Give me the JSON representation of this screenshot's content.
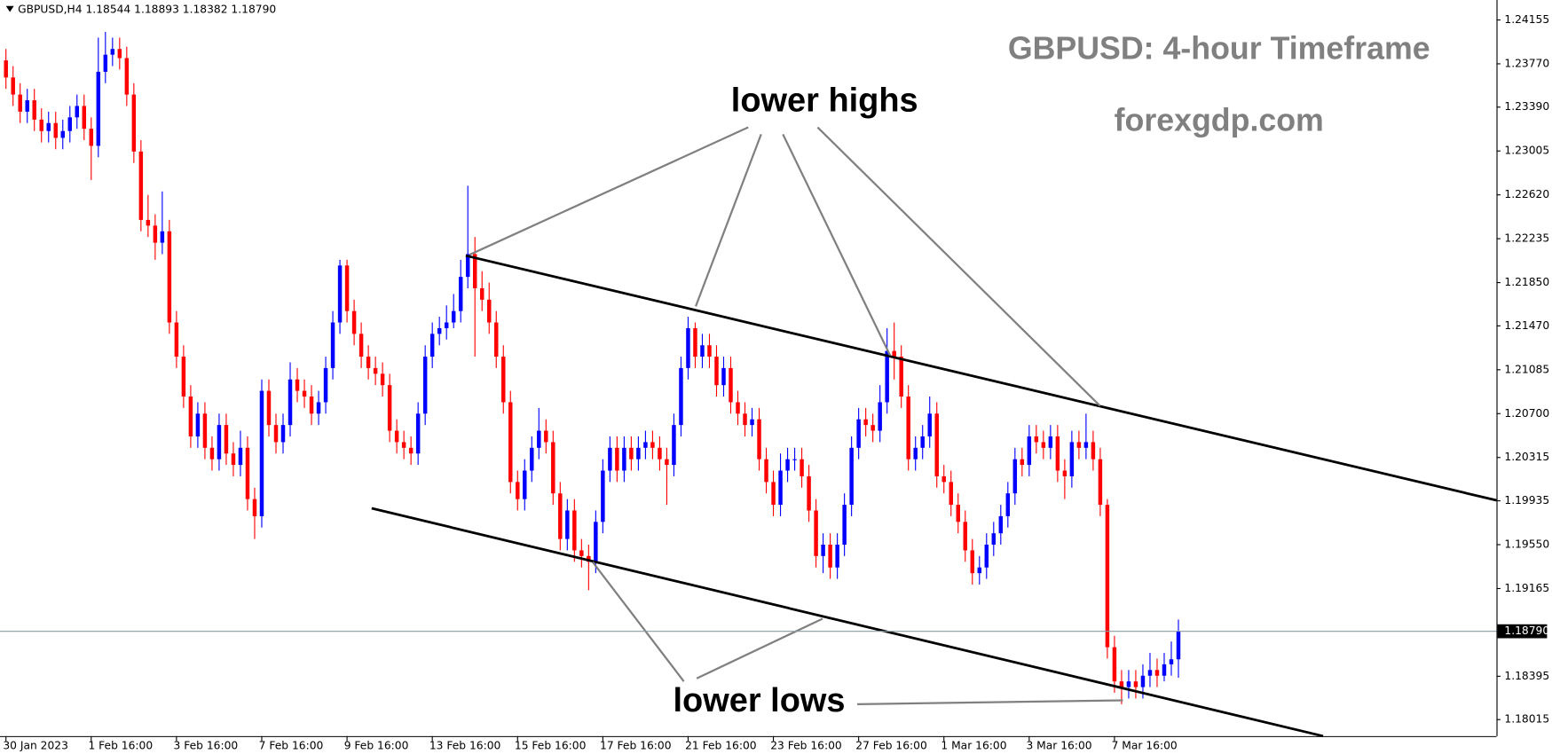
{
  "chart_data": {
    "type": "candlestick",
    "header": "GBPUSD,H4  1.18544 1.18893 1.18382 1.18790",
    "title": "GBPUSD: 4-hour Timeframe",
    "subtitle": "forexgdp.com",
    "annotations": [
      "lower highs",
      "lower lows"
    ],
    "up_color": "#0000ff",
    "down_color": "#ff0000",
    "ylim": [
      1.1787,
      1.2433
    ],
    "yticks": [
      1.24155,
      {
        "value": 1.2377,
        "label": "1.23770"
      },
      {
        "value": 1.2339,
        "label": "1.23390"
      },
      1.23005,
      {
        "value": 1.2262,
        "label": "1.22620"
      },
      1.22235,
      {
        "value": 1.2185,
        "label": "1.21850"
      },
      {
        "value": 1.2147,
        "label": "1.21470"
      },
      1.21085,
      {
        "value": 1.207,
        "label": "1.20700"
      },
      1.20315,
      1.19935,
      {
        "value": 1.1955,
        "label": "1.19550"
      },
      1.19165,
      1.18395,
      1.18015
    ],
    "price_line": {
      "value": 1.1879,
      "label": "1.18790"
    },
    "categories": [
      "30 Jan 2023",
      null,
      null,
      null,
      null,
      null,
      null,
      null,
      null,
      null,
      null,
      null,
      "1 Feb 16:00",
      null,
      null,
      null,
      null,
      null,
      null,
      null,
      null,
      null,
      null,
      null,
      "3 Feb 16:00",
      null,
      null,
      null,
      null,
      null,
      null,
      null,
      null,
      null,
      null,
      null,
      "7 Feb 16:00",
      null,
      null,
      null,
      null,
      null,
      null,
      null,
      null,
      null,
      null,
      null,
      "9 Feb 16:00",
      null,
      null,
      null,
      null,
      null,
      null,
      null,
      null,
      null,
      null,
      null,
      "13 Feb 16:00",
      null,
      null,
      null,
      null,
      null,
      null,
      null,
      null,
      null,
      null,
      null,
      "15 Feb 16:00",
      null,
      null,
      null,
      null,
      null,
      null,
      null,
      null,
      null,
      null,
      null,
      "17 Feb 16:00",
      null,
      null,
      null,
      null,
      null,
      null,
      null,
      null,
      null,
      null,
      null,
      "21 Feb 16:00",
      null,
      null,
      null,
      null,
      null,
      null,
      null,
      null,
      null,
      null,
      null,
      "23 Feb 16:00",
      null,
      null,
      null,
      null,
      null,
      null,
      null,
      null,
      null,
      null,
      null,
      "27 Feb 16:00",
      null,
      null,
      null,
      null,
      null,
      null,
      null,
      null,
      null,
      null,
      null,
      "1 Mar 16:00",
      null,
      null,
      null,
      null,
      null,
      null,
      null,
      null,
      null,
      null,
      null,
      "3 Mar 16:00",
      null,
      null,
      null,
      null,
      null,
      null,
      null,
      null,
      null,
      null,
      null,
      "7 Mar 16:00",
      null,
      null,
      null,
      null,
      null,
      null,
      null,
      null,
      null
    ],
    "open": [
      1.238,
      1.2365,
      1.235,
      1.2335,
      1.2345,
      1.2328,
      1.2318,
      1.2325,
      1.2312,
      1.2318,
      1.233,
      1.234,
      1.232,
      1.2305,
      1.237,
      1.2385,
      1.239,
      1.2382,
      1.235,
      1.23,
      1.224,
      1.2235,
      1.222,
      1.223,
      1.215,
      1.212,
      1.2085,
      1.205,
      1.207,
      1.204,
      1.203,
      1.206,
      1.2035,
      1.2025,
      1.204,
      1.1995,
      1.198,
      1.209,
      1.206,
      1.2045,
      1.206,
      1.21,
      1.209,
      1.2085,
      1.207,
      1.208,
      1.211,
      1.215,
      1.22,
      1.216,
      1.214,
      1.212,
      1.211,
      1.2105,
      1.2095,
      1.2055,
      1.2045,
      1.204,
      1.2035,
      1.207,
      1.212,
      1.214,
      1.2145,
      1.215,
      1.216,
      1.219,
      1.221,
      1.218,
      1.217,
      1.215,
      1.212,
      1.208,
      1.201,
      1.1995,
      1.202,
      1.204,
      1.2055,
      1.2045,
      1.2,
      1.196,
      1.1985,
      1.195,
      1.1945,
      1.194,
      1.1975,
      1.202,
      1.204,
      1.202,
      1.204,
      1.203,
      1.204,
      1.2045,
      1.204,
      1.203,
      1.2025,
      1.206,
      1.211,
      1.2145,
      1.212,
      1.213,
      1.212,
      1.2095,
      1.211,
      1.208,
      1.207,
      1.206,
      1.2065,
      1.203,
      1.201,
      1.199,
      1.202,
      1.203,
      1.203,
      1.2015,
      1.1985,
      1.1945,
      1.1955,
      1.1935,
      1.1955,
      1.199,
      1.204,
      1.2065,
      1.206,
      1.2055,
      1.208,
      1.2125,
      1.212,
      1.2085,
      1.203,
      1.204,
      1.205,
      1.207,
      1.2015,
      1.201,
      1.199,
      1.1975,
      1.195,
      1.193,
      1.1935,
      1.1955,
      1.1965,
      1.198,
      1.2,
      1.203,
      1.2025,
      1.205,
      1.2045,
      1.204,
      1.205,
      1.202,
      1.2015,
      1.2045,
      1.204,
      1.2045,
      1.203,
      1.199,
      1.1865,
      1.1835,
      1.183,
      1.1835,
      1.183,
      1.184,
      1.1845,
      1.184,
      1.185,
      1.18544
    ],
    "high": [
      1.239,
      1.2375,
      1.236,
      1.2355,
      1.2355,
      1.2338,
      1.2335,
      1.2335,
      1.2328,
      1.234,
      1.235,
      1.235,
      1.233,
      1.24,
      1.2405,
      1.24,
      1.24,
      1.2392,
      1.236,
      1.231,
      1.2262,
      1.2245,
      1.2265,
      1.224,
      1.216,
      1.213,
      1.2095,
      1.208,
      1.208,
      1.205,
      1.207,
      1.207,
      1.2045,
      1.2055,
      1.205,
      1.2005,
      1.21,
      1.21,
      1.207,
      1.207,
      1.2115,
      1.211,
      1.21,
      1.2095,
      1.209,
      1.212,
      1.216,
      1.2205,
      1.2205,
      1.217,
      1.215,
      1.213,
      1.212,
      1.2115,
      1.2105,
      1.2065,
      1.2055,
      1.205,
      1.208,
      1.213,
      1.215,
      1.2155,
      1.2165,
      1.2175,
      1.2205,
      1.227,
      1.2225,
      1.2195,
      1.2185,
      1.216,
      1.213,
      1.209,
      1.202,
      1.203,
      1.205,
      1.2075,
      1.2065,
      1.2055,
      1.201,
      1.1995,
      1.1995,
      1.196,
      1.1955,
      1.1985,
      1.203,
      1.205,
      1.205,
      1.205,
      1.205,
      1.205,
      1.2055,
      1.2055,
      1.205,
      1.204,
      1.207,
      1.212,
      1.2155,
      1.215,
      1.214,
      1.214,
      1.213,
      1.212,
      1.212,
      1.209,
      1.208,
      1.2075,
      1.2075,
      1.204,
      1.202,
      1.2035,
      1.204,
      1.204,
      1.204,
      1.2025,
      1.1995,
      1.1965,
      1.1965,
      1.1965,
      1.2,
      1.205,
      1.2075,
      1.2075,
      1.207,
      1.2095,
      1.2145,
      1.215,
      1.213,
      1.2095,
      1.205,
      1.206,
      1.2085,
      1.208,
      1.2025,
      1.202,
      1.2,
      1.1985,
      1.196,
      1.1945,
      1.1965,
      1.1975,
      1.199,
      1.201,
      1.204,
      1.204,
      1.206,
      1.206,
      1.2055,
      1.206,
      1.206,
      1.203,
      1.2055,
      1.2055,
      1.207,
      1.2055,
      1.204,
      1.1995,
      1.1875,
      1.1845,
      1.1845,
      1.1845,
      1.185,
      1.186,
      1.1855,
      1.186,
      1.187,
      1.18893
    ],
    "low": [
      1.2355,
      1.234,
      1.2325,
      1.2325,
      1.2318,
      1.2308,
      1.2308,
      1.2302,
      1.2302,
      1.2308,
      1.232,
      1.231,
      1.2275,
      1.2295,
      1.236,
      1.2375,
      1.2372,
      1.234,
      1.229,
      1.223,
      1.2225,
      1.2205,
      1.221,
      1.214,
      1.211,
      1.2075,
      1.204,
      1.204,
      1.203,
      1.202,
      1.202,
      1.2025,
      1.2015,
      1.2015,
      1.1985,
      1.196,
      1.197,
      1.205,
      1.2035,
      1.2035,
      1.205,
      1.208,
      1.2075,
      1.206,
      1.206,
      1.207,
      1.21,
      1.214,
      1.215,
      1.213,
      1.211,
      1.21,
      1.2095,
      1.2085,
      1.2045,
      1.2035,
      1.203,
      1.2025,
      1.2025,
      1.206,
      1.211,
      1.213,
      1.2135,
      1.2145,
      1.215,
      1.218,
      1.212,
      1.216,
      1.214,
      1.211,
      1.207,
      1.2,
      1.1985,
      1.1985,
      1.201,
      1.203,
      1.2035,
      1.199,
      1.195,
      1.195,
      1.194,
      1.1935,
      1.1915,
      1.193,
      1.1965,
      1.201,
      1.201,
      1.201,
      1.202,
      1.202,
      1.203,
      1.203,
      1.202,
      1.199,
      1.2015,
      1.205,
      1.21,
      1.211,
      1.211,
      1.211,
      1.2085,
      1.2085,
      1.207,
      1.206,
      1.205,
      1.205,
      1.202,
      1.2,
      1.198,
      1.198,
      1.201,
      1.202,
      1.2005,
      1.1975,
      1.1935,
      1.193,
      1.1925,
      1.1925,
      1.1945,
      1.198,
      1.203,
      1.205,
      1.2045,
      1.2045,
      1.207,
      1.21,
      1.2075,
      1.202,
      1.202,
      1.203,
      1.204,
      1.2005,
      1.2,
      1.198,
      1.1965,
      1.194,
      1.192,
      1.192,
      1.1925,
      1.1945,
      1.1955,
      1.197,
      1.199,
      1.2015,
      1.2015,
      1.2035,
      1.203,
      1.203,
      1.201,
      1.1995,
      1.2005,
      1.203,
      1.203,
      1.202,
      1.198,
      1.1855,
      1.1825,
      1.1815,
      1.182,
      1.182,
      1.182,
      1.183,
      1.183,
      1.1835,
      1.184,
      1.18382
    ],
    "close": [
      1.2365,
      1.235,
      1.2335,
      1.2345,
      1.2328,
      1.2318,
      1.2325,
      1.2312,
      1.2318,
      1.233,
      1.234,
      1.232,
      1.2305,
      1.237,
      1.2385,
      1.239,
      1.2382,
      1.235,
      1.23,
      1.224,
      1.2235,
      1.222,
      1.223,
      1.215,
      1.212,
      1.2085,
      1.205,
      1.207,
      1.204,
      1.203,
      1.206,
      1.2035,
      1.2025,
      1.204,
      1.1995,
      1.198,
      1.209,
      1.206,
      1.2045,
      1.206,
      1.21,
      1.209,
      1.2085,
      1.207,
      1.208,
      1.211,
      1.215,
      1.22,
      1.216,
      1.214,
      1.212,
      1.211,
      1.2105,
      1.2095,
      1.2055,
      1.2045,
      1.204,
      1.2035,
      1.207,
      1.212,
      1.214,
      1.2145,
      1.215,
      1.216,
      1.219,
      1.221,
      1.218,
      1.217,
      1.215,
      1.212,
      1.208,
      1.201,
      1.1995,
      1.202,
      1.204,
      1.2055,
      1.2045,
      1.2,
      1.196,
      1.1985,
      1.195,
      1.1945,
      1.194,
      1.1975,
      1.202,
      1.204,
      1.202,
      1.204,
      1.203,
      1.204,
      1.2045,
      1.204,
      1.203,
      1.2025,
      1.206,
      1.211,
      1.2145,
      1.212,
      1.213,
      1.212,
      1.2095,
      1.211,
      1.208,
      1.207,
      1.206,
      1.2065,
      1.203,
      1.201,
      1.199,
      1.202,
      1.203,
      1.203,
      1.2015,
      1.1985,
      1.1945,
      1.1955,
      1.1935,
      1.1955,
      1.199,
      1.204,
      1.2065,
      1.206,
      1.2055,
      1.208,
      1.2125,
      1.212,
      1.2085,
      1.203,
      1.204,
      1.205,
      1.207,
      1.2015,
      1.201,
      1.199,
      1.1975,
      1.195,
      1.193,
      1.1935,
      1.1955,
      1.1965,
      1.198,
      1.2,
      1.203,
      1.2025,
      1.205,
      1.2045,
      1.204,
      1.205,
      1.202,
      1.2015,
      1.2045,
      1.204,
      1.2045,
      1.203,
      1.199,
      1.1865,
      1.1835,
      1.183,
      1.1835,
      1.183,
      1.184,
      1.1845,
      1.184,
      1.185,
      1.18544,
      1.1879
    ]
  }
}
